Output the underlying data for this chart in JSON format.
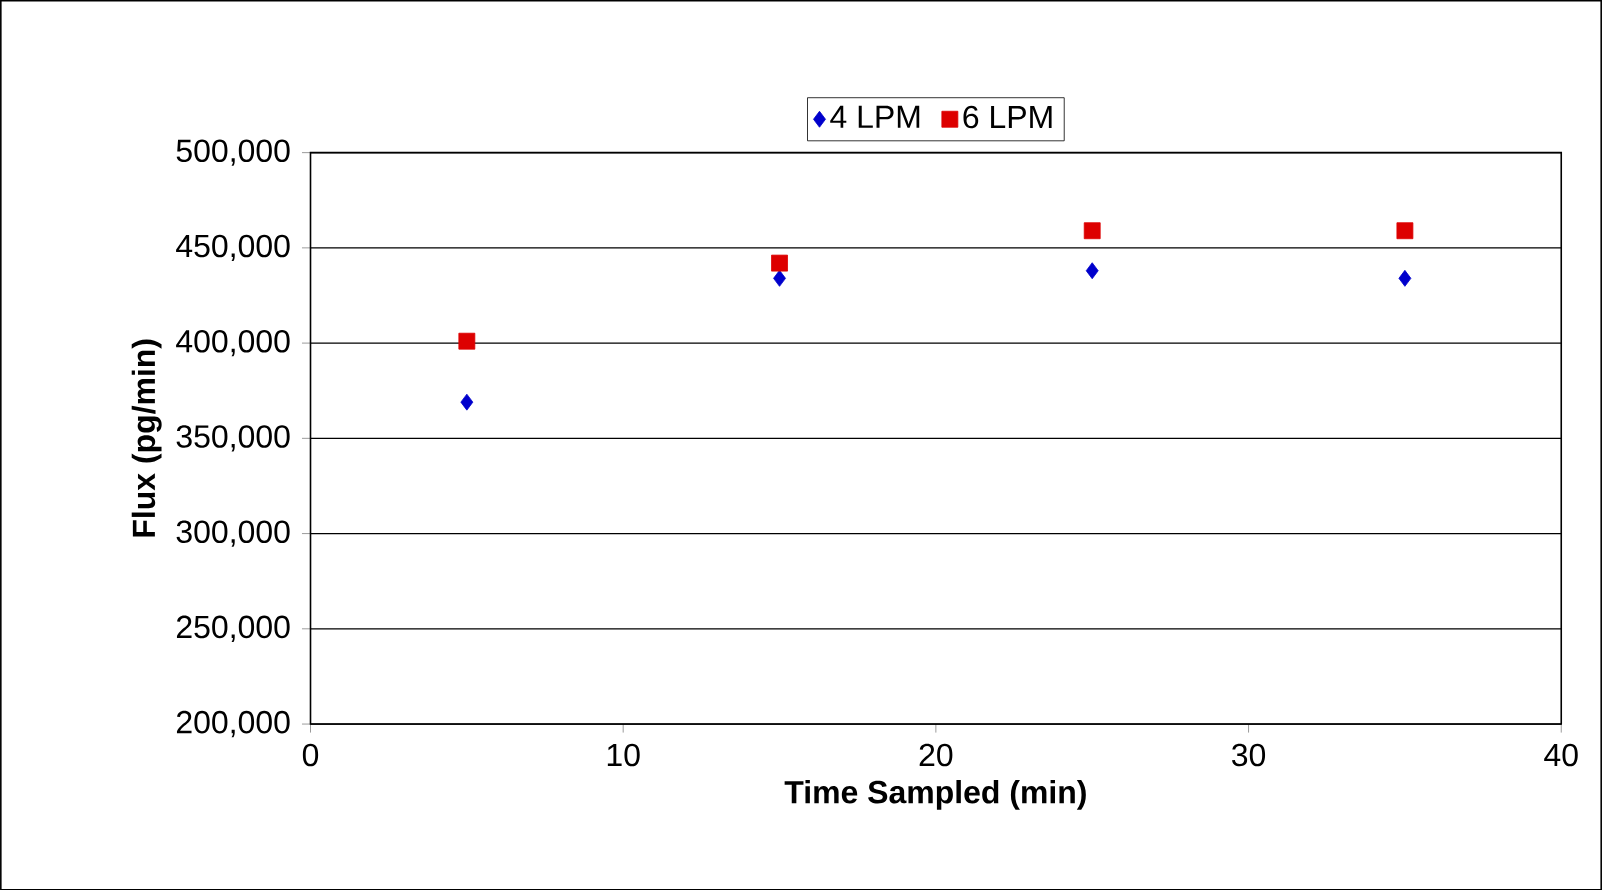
{
  "chart_data": {
    "type": "scatter",
    "xlabel": "Time Sampled (min)",
    "ylabel": "Flux (pg/min)",
    "series": [
      {
        "name": "4 LPM",
        "color": "#0000cc",
        "marker": "diamond",
        "x": [
          5,
          15,
          25,
          35
        ],
        "values": [
          369000,
          434000,
          438000,
          434000
        ]
      },
      {
        "name": "6 LPM",
        "color": "#dd0000",
        "marker": "square",
        "x": [
          5,
          15,
          25,
          35
        ],
        "values": [
          401000,
          442000,
          459000,
          459000
        ]
      }
    ],
    "xlim": [
      0,
      40
    ],
    "ylim": [
      200000,
      500000
    ],
    "xticks": [
      0,
      10,
      20,
      30,
      40
    ],
    "yticks": [
      {
        "value": 200000,
        "label": "200,000"
      },
      {
        "value": 250000,
        "label": "250,000"
      },
      {
        "value": 300000,
        "label": "300,000"
      },
      {
        "value": 350000,
        "label": "350,000"
      },
      {
        "value": 400000,
        "label": "400,000"
      },
      {
        "value": 450000,
        "label": "450,000"
      },
      {
        "value": 500000,
        "label": "500,000"
      }
    ],
    "grid": "y",
    "legend": "top"
  }
}
